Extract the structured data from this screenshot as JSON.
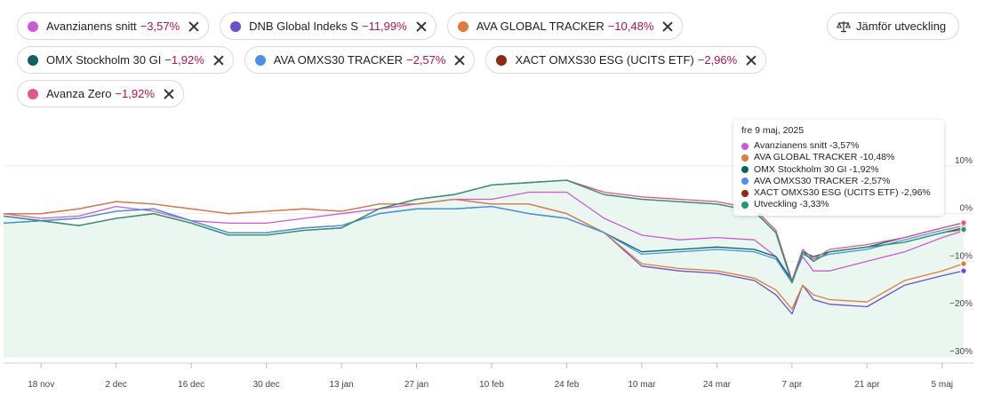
{
  "chips": [
    [
      {
        "name": "Avanzianens snitt",
        "value": "−3,57%",
        "color": "#c85ad6"
      },
      {
        "name": "DNB Global Indeks S",
        "value": "−11,99%",
        "color": "#6a4fcf"
      },
      {
        "name": "AVA GLOBAL TRACKER",
        "value": "−10,48%",
        "color": "#e07b3a"
      }
    ],
    [
      {
        "name": "OMX Stockholm 30 GI",
        "value": "−1,92%",
        "color": "#0b6165"
      },
      {
        "name": "AVA OMXS30 TRACKER",
        "value": "−2,57%",
        "color": "#4a90e8"
      },
      {
        "name": "XACT OMXS30 ESG (UCITS ETF)",
        "value": "−2,96%",
        "color": "#8c2a12"
      }
    ],
    [
      {
        "name": "Avanza Zero",
        "value": "−1,92%",
        "color": "#e0568c"
      }
    ]
  ],
  "compare_button": {
    "label": "Jämför utveckling",
    "icon": "scale-icon"
  },
  "tooltip": {
    "date": "fre 9 maj, 2025",
    "items": [
      {
        "label": "Avanzianens snitt -3,57%",
        "color": "#c85ad6"
      },
      {
        "label": "AVA GLOBAL TRACKER -10,48%",
        "color": "#e07b3a"
      },
      {
        "label": "OMX Stockholm 30 GI -1,92%",
        "color": "#0b6165"
      },
      {
        "label": "AVA OMXS30 TRACKER -2,57%",
        "color": "#4a90e8"
      },
      {
        "label": "XACT OMXS30 ESG (UCITS ETF) -2,96%",
        "color": "#8c2a12"
      },
      {
        "label": "Utveckling -3,33%",
        "color": "#1f9b6e"
      }
    ]
  },
  "chart_data": {
    "type": "line",
    "ylim": [
      -30,
      15
    ],
    "yticks": [
      10,
      0,
      -10,
      -20,
      -30
    ],
    "ytick_labels": [
      "10%",
      "0%",
      "-10%",
      "-20%",
      "-30%"
    ],
    "xlim": [
      "2024-11-11",
      "2025-05-11"
    ],
    "xticks": [
      "2024-11-18",
      "2024-12-02",
      "2024-12-16",
      "2024-12-30",
      "2025-01-13",
      "2025-01-27",
      "2025-02-10",
      "2025-02-24",
      "2025-03-10",
      "2025-03-24",
      "2025-04-07",
      "2025-04-21",
      "2025-05-05"
    ],
    "xtick_labels": [
      "18 nov",
      "2 dec",
      "16 dec",
      "30 dec",
      "13 jan",
      "27 jan",
      "10 feb",
      "24 feb",
      "10 mar",
      "24 mar",
      "7 apr",
      "21 apr",
      "5 maj"
    ],
    "x": [
      "2024-11-11",
      "2024-11-18",
      "2024-11-25",
      "2024-12-02",
      "2024-12-09",
      "2024-12-16",
      "2024-12-23",
      "2024-12-30",
      "2025-01-06",
      "2025-01-13",
      "2025-01-20",
      "2025-01-27",
      "2025-02-03",
      "2025-02-10",
      "2025-02-17",
      "2025-02-24",
      "2025-03-03",
      "2025-03-10",
      "2025-03-17",
      "2025-03-24",
      "2025-03-31",
      "2025-04-04",
      "2025-04-07",
      "2025-04-09",
      "2025-04-11",
      "2025-04-14",
      "2025-04-21",
      "2025-04-28",
      "2025-05-05",
      "2025-05-09"
    ],
    "series": [
      {
        "name": "Avanzianens snitt",
        "color": "#c85ad6",
        "values": [
          0,
          -1,
          -0.5,
          1.5,
          0.5,
          -1.5,
          -2,
          -2,
          -1,
          0,
          1,
          2,
          3,
          3,
          4.5,
          4.5,
          -1,
          -4.5,
          -5.5,
          -5,
          -5.5,
          -9,
          -14,
          -9,
          -12,
          -12,
          -10,
          -8,
          -5,
          -3.57
        ]
      },
      {
        "name": "DNB Global Indeks S",
        "color": "#6a4fcf",
        "values": [
          0,
          0,
          1,
          2.5,
          2,
          1,
          0,
          0.5,
          1,
          0.5,
          2,
          2,
          3,
          2,
          2,
          0,
          -4,
          -11,
          -12,
          -12.5,
          -14,
          -17,
          -21,
          -15,
          -18,
          -19,
          -19.5,
          -15,
          -13,
          -11.99
        ]
      },
      {
        "name": "AVA GLOBAL TRACKER",
        "color": "#e07b3a",
        "values": [
          0,
          0,
          1,
          2.5,
          2,
          1,
          0,
          0.5,
          1,
          0.5,
          2,
          2,
          3,
          2,
          2,
          0,
          -4,
          -10.5,
          -11.5,
          -12,
          -13.5,
          -16,
          -20,
          -15,
          -17,
          -18,
          -18.5,
          -14,
          -12,
          -10.48
        ]
      },
      {
        "name": "OMX Stockholm 30 GI",
        "color": "#0b6165",
        "values": [
          -2,
          -1.5,
          -1,
          0.5,
          1,
          -1.5,
          -4,
          -4,
          -3,
          -2.5,
          0,
          1,
          1,
          1.5,
          0,
          -1,
          -4,
          -8,
          -7.5,
          -7,
          -7.5,
          -9,
          -14,
          -8,
          -9,
          -8,
          -7,
          -5,
          -3,
          -1.92
        ]
      },
      {
        "name": "AVA OMXS30 TRACKER",
        "color": "#4a90e8",
        "values": [
          -2,
          -1.5,
          -1,
          0.5,
          1,
          -1.5,
          -4,
          -4,
          -3,
          -2.5,
          0,
          1,
          1,
          1.5,
          0,
          -1,
          -4,
          -8.5,
          -8,
          -7.5,
          -8,
          -9.5,
          -14.5,
          -8.5,
          -9.5,
          -8.5,
          -7.5,
          -5.5,
          -3.5,
          -2.57
        ]
      },
      {
        "name": "XACT OMXS30 ESG (UCITS ETF)",
        "color": "#8c2a12",
        "values": [
          -0.5,
          -1.5,
          -2.5,
          -1,
          0,
          -2,
          -4.5,
          -4.5,
          -3.5,
          -3,
          1,
          3,
          4,
          6,
          6.5,
          7,
          4,
          3,
          2.5,
          2,
          0.5,
          -4,
          -14.5,
          -8,
          -10,
          -8,
          -7,
          -6,
          -4,
          -2.96
        ]
      },
      {
        "name": "Avanza Zero",
        "color": "#e0568c",
        "values": [
          -0.5,
          -1.5,
          -2.5,
          -1,
          0,
          -2,
          -4.5,
          -4.5,
          -3.5,
          -3,
          1,
          3,
          4,
          6,
          6.5,
          7,
          4.5,
          3.5,
          3,
          2.5,
          1,
          -3.5,
          -14,
          -7.5,
          -9.5,
          -7.5,
          -6.5,
          -5,
          -3,
          -1.92
        ]
      },
      {
        "name": "Utveckling",
        "color": "#1f9b6e",
        "fill": "#eaf7f1",
        "values": [
          -0.5,
          -1.5,
          -2.5,
          -1,
          0,
          -2,
          -4.5,
          -4.5,
          -3.5,
          -3,
          1,
          3,
          4,
          6,
          6.5,
          7,
          4,
          3,
          2.5,
          2,
          0.5,
          -4,
          -14.5,
          -8,
          -10,
          -8,
          -7,
          -6,
          -4,
          -3.33
        ]
      }
    ]
  }
}
